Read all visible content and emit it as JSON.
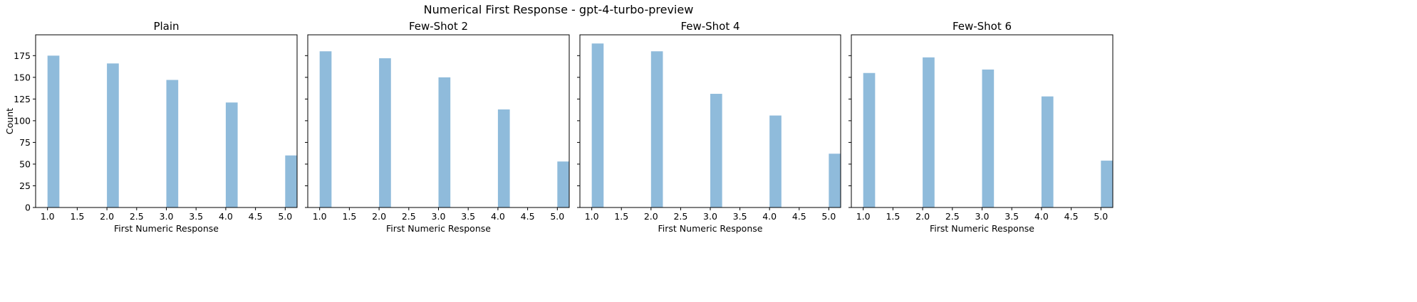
{
  "figure": {
    "suptitle": "Numerical First Response - gpt-4-turbo-preview"
  },
  "chart_data": [
    {
      "type": "bar",
      "title": "Plain",
      "xlabel": "First Numeric Response",
      "ylabel": "Count",
      "x": [
        1.0,
        2.0,
        3.0,
        4.0,
        5.0
      ],
      "values": [
        175,
        166,
        147,
        121,
        60
      ],
      "xlim": [
        0.8,
        5.2
      ],
      "ylim": [
        0,
        199
      ],
      "xticks": [
        "1.0",
        "1.5",
        "2.0",
        "2.5",
        "3.0",
        "3.5",
        "4.0",
        "4.5",
        "5.0"
      ],
      "yticks": [
        "0",
        "25",
        "50",
        "75",
        "100",
        "125",
        "150",
        "175"
      ],
      "color": "#8fbbdb",
      "grid": false
    },
    {
      "type": "bar",
      "title": "Few-Shot 2",
      "xlabel": "First Numeric Response",
      "ylabel": "",
      "x": [
        1.0,
        2.0,
        3.0,
        4.0,
        5.0
      ],
      "values": [
        180,
        172,
        150,
        113,
        53
      ],
      "xlim": [
        0.8,
        5.2
      ],
      "ylim": [
        0,
        199
      ],
      "xticks": [
        "1.0",
        "1.5",
        "2.0",
        "2.5",
        "3.0",
        "3.5",
        "4.0",
        "4.5",
        "5.0"
      ],
      "yticks": [],
      "color": "#8fbbdb",
      "grid": false
    },
    {
      "type": "bar",
      "title": "Few-Shot 4",
      "xlabel": "First Numeric Response",
      "ylabel": "",
      "x": [
        1.0,
        2.0,
        3.0,
        4.0,
        5.0
      ],
      "values": [
        189,
        180,
        131,
        106,
        62
      ],
      "xlim": [
        0.8,
        5.2
      ],
      "ylim": [
        0,
        199
      ],
      "xticks": [
        "1.0",
        "1.5",
        "2.0",
        "2.5",
        "3.0",
        "3.5",
        "4.0",
        "4.5",
        "5.0"
      ],
      "yticks": [],
      "color": "#8fbbdb",
      "grid": false
    },
    {
      "type": "bar",
      "title": "Few-Shot 6",
      "xlabel": "First Numeric Response",
      "ylabel": "",
      "x": [
        1.0,
        2.0,
        3.0,
        4.0,
        5.0
      ],
      "values": [
        155,
        173,
        159,
        128,
        54
      ],
      "xlim": [
        0.8,
        5.2
      ],
      "ylim": [
        0,
        199
      ],
      "xticks": [
        "1.0",
        "1.5",
        "2.0",
        "2.5",
        "3.0",
        "3.5",
        "4.0",
        "4.5",
        "5.0"
      ],
      "yticks": [],
      "color": "#8fbbdb",
      "grid": false
    }
  ]
}
